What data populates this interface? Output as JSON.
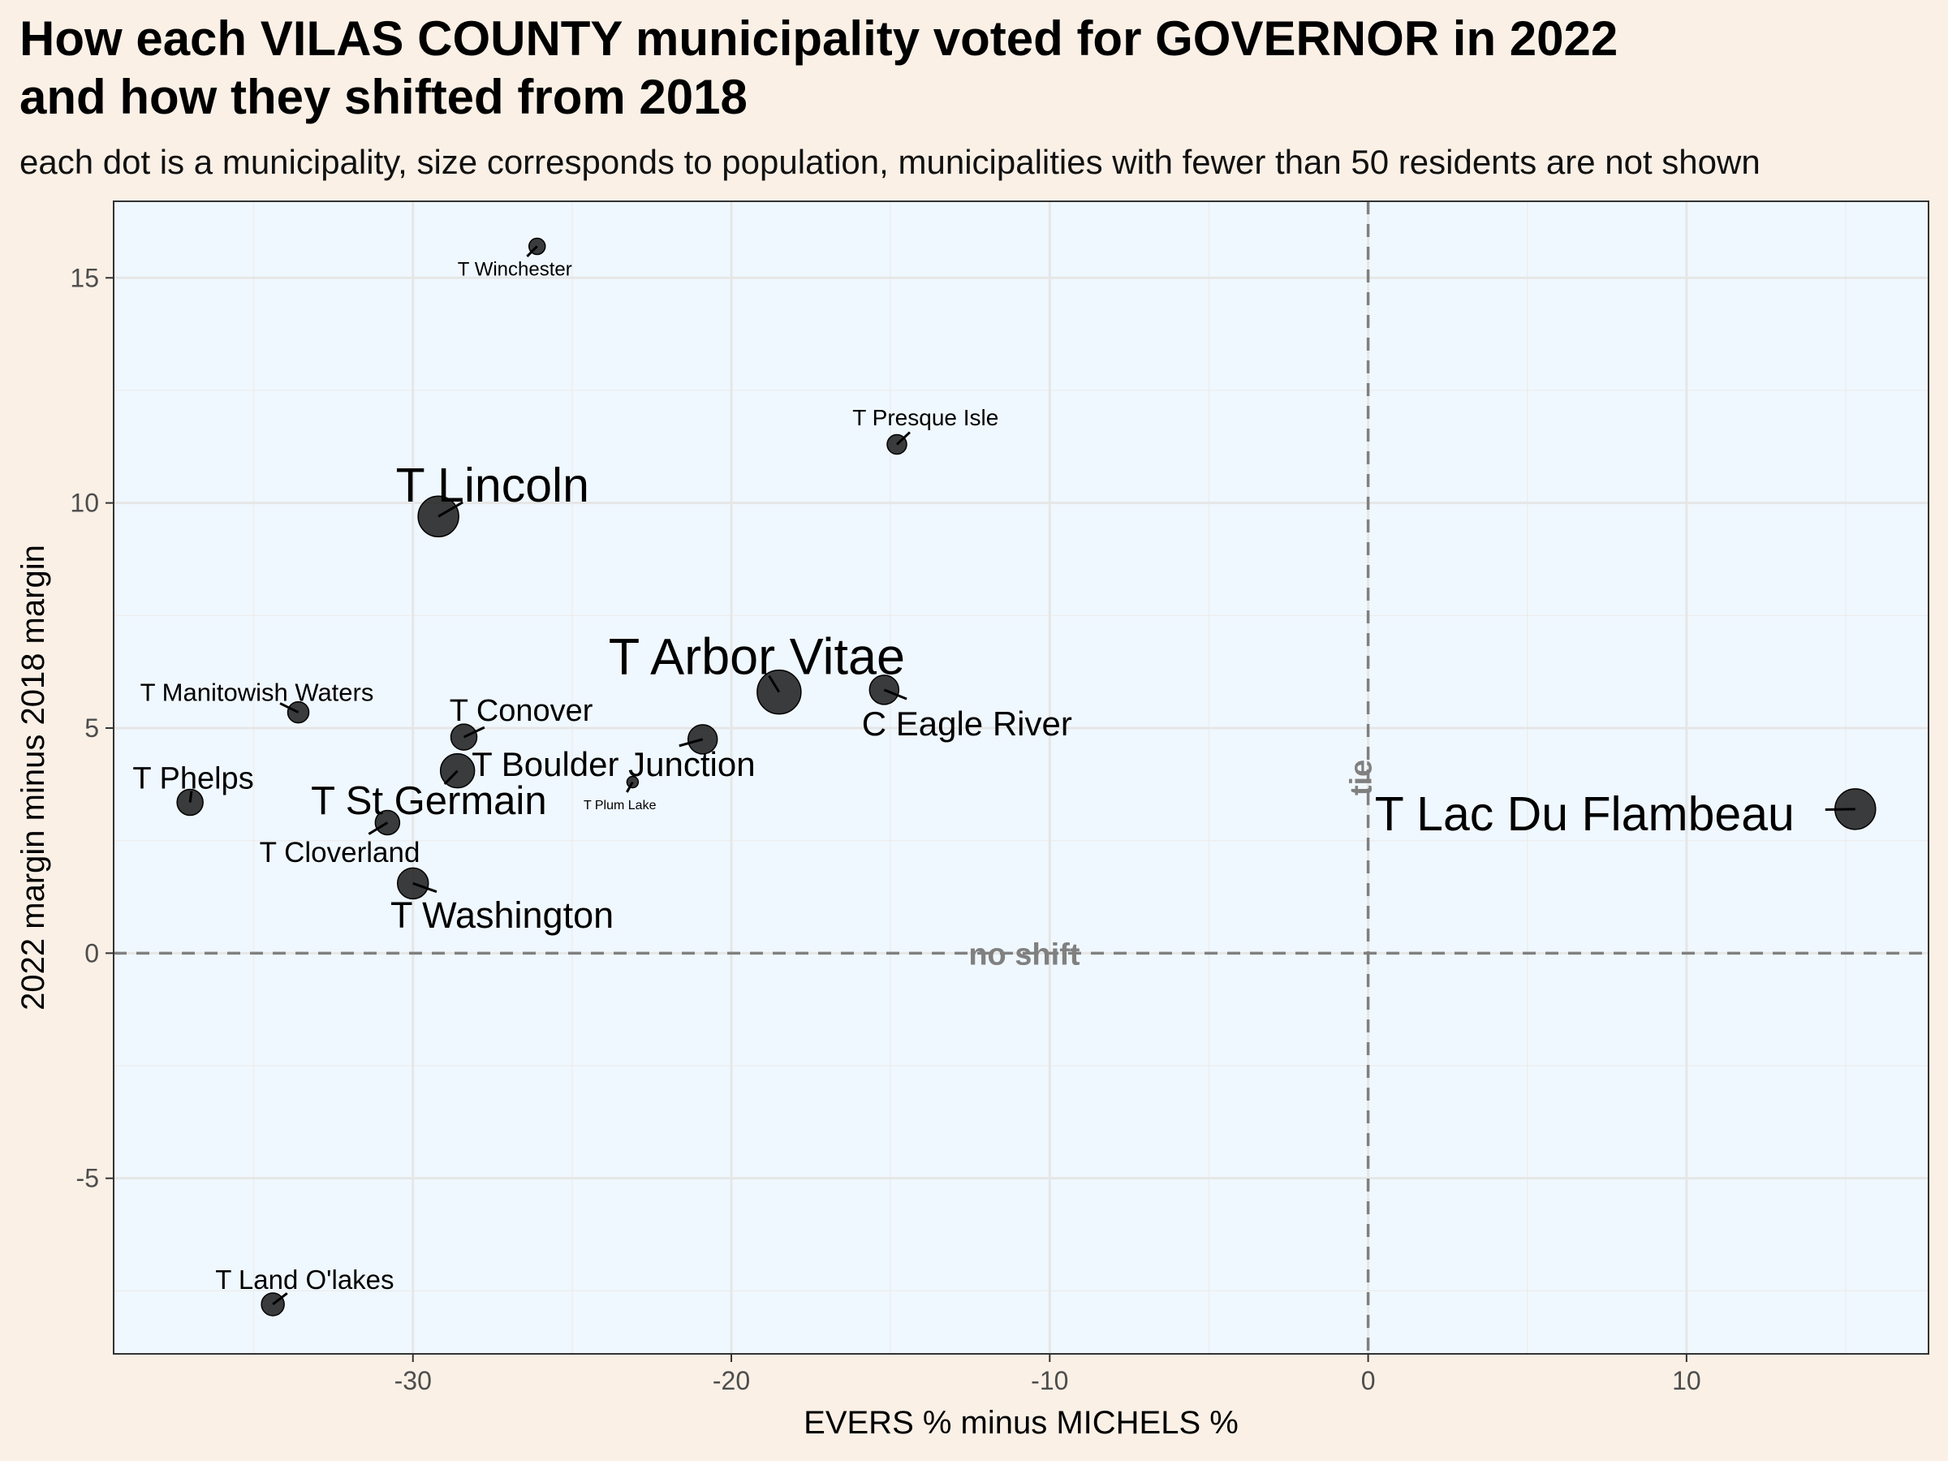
{
  "title_line1": "How each VILAS COUNTY municipality voted for GOVERNOR in 2022",
  "title_line2": "and how they shifted from 2018",
  "subtitle": "each dot is a municipality, size corresponds to population, municipalities with fewer than 50 residents are not shown",
  "colors": {
    "page_bg": "#faf0e6",
    "panel_bg": "#f0f8ff",
    "grid_major": "#e6e6e6",
    "grid_minor": "#ededed",
    "dot": "#1a1a1a",
    "ref_line": "#808080",
    "ref_text": "#808080"
  },
  "chart_data": {
    "type": "scatter",
    "title": "How each VILAS COUNTY municipality voted for GOVERNOR in 2022 and how they shifted from 2018",
    "xlabel": "EVERS % minus MICHELS %",
    "ylabel": "2022 margin minus 2018 margin",
    "xlim": [
      -39.4,
      17.6
    ],
    "ylim": [
      -8.9,
      16.7
    ],
    "x_ticks": [
      -30,
      -20,
      -10,
      0,
      10
    ],
    "x_tick_labels": [
      "-30",
      "-20",
      "-10",
      "0",
      "10"
    ],
    "y_ticks": [
      -5,
      0,
      5,
      10,
      15
    ],
    "y_tick_labels": [
      "-5",
      "0",
      "5",
      "10",
      "15"
    ],
    "grid": true,
    "reference_lines": [
      {
        "axis": "y",
        "value": 0,
        "label": "no shift",
        "label_x": -10.8
      },
      {
        "axis": "x",
        "value": 0,
        "label": "tie",
        "label_y": 3.9
      }
    ],
    "points": [
      {
        "name": "T Winchester",
        "x": -26.1,
        "y": 15.7,
        "size": 10,
        "label_x": -26.8,
        "label_y": 15.2
      },
      {
        "name": "T Presque Isle",
        "x": -14.8,
        "y": 11.3,
        "size": 12,
        "label_x": -13.9,
        "label_y": 11.9
      },
      {
        "name": "T Lincoln",
        "x": -29.2,
        "y": 9.7,
        "size": 25,
        "label_x": -27.5,
        "label_y": 10.4
      },
      {
        "name": "T Arbor Vitae",
        "x": -18.5,
        "y": 5.8,
        "size": 27,
        "label_x": -19.2,
        "label_y": 6.6
      },
      {
        "name": "C Eagle River",
        "x": -15.2,
        "y": 5.85,
        "size": 18,
        "label_x": -12.6,
        "label_y": 5.1
      },
      {
        "name": "T Manitowish Waters",
        "x": -33.6,
        "y": 5.35,
        "size": 13,
        "label_x": -34.9,
        "label_y": 5.8
      },
      {
        "name": "T Conover",
        "x": -28.4,
        "y": 4.8,
        "size": 16,
        "label_x": -26.6,
        "label_y": 5.4
      },
      {
        "name": "T Boulder Junction",
        "x": -20.9,
        "y": 4.75,
        "size": 18,
        "label_x": -23.7,
        "label_y": 4.2
      },
      {
        "name": "T Phelps",
        "x": -37.0,
        "y": 3.35,
        "size": 16,
        "label_x": -36.9,
        "label_y": 3.9
      },
      {
        "name": "T St Germain",
        "x": -28.6,
        "y": 4.05,
        "size": 21,
        "label_x": -29.5,
        "label_y": 3.4
      },
      {
        "name": "T Plum Lake",
        "x": -23.1,
        "y": 3.8,
        "size": 7,
        "label_x": -23.5,
        "label_y": 3.3
      },
      {
        "name": "T Lac Du Flambeau",
        "x": 15.3,
        "y": 3.2,
        "size": 25,
        "label_x": 6.8,
        "label_y": 3.1
      },
      {
        "name": "T Cloverland",
        "x": -30.8,
        "y": 2.9,
        "size": 15,
        "label_x": -32.3,
        "label_y": 2.25
      },
      {
        "name": "T Washington",
        "x": -30.0,
        "y": 1.55,
        "size": 19,
        "label_x": -27.2,
        "label_y": 0.85
      },
      {
        "name": "T Land O'lakes",
        "x": -34.4,
        "y": -7.8,
        "size": 14,
        "label_x": -33.4,
        "label_y": -7.25
      }
    ]
  }
}
